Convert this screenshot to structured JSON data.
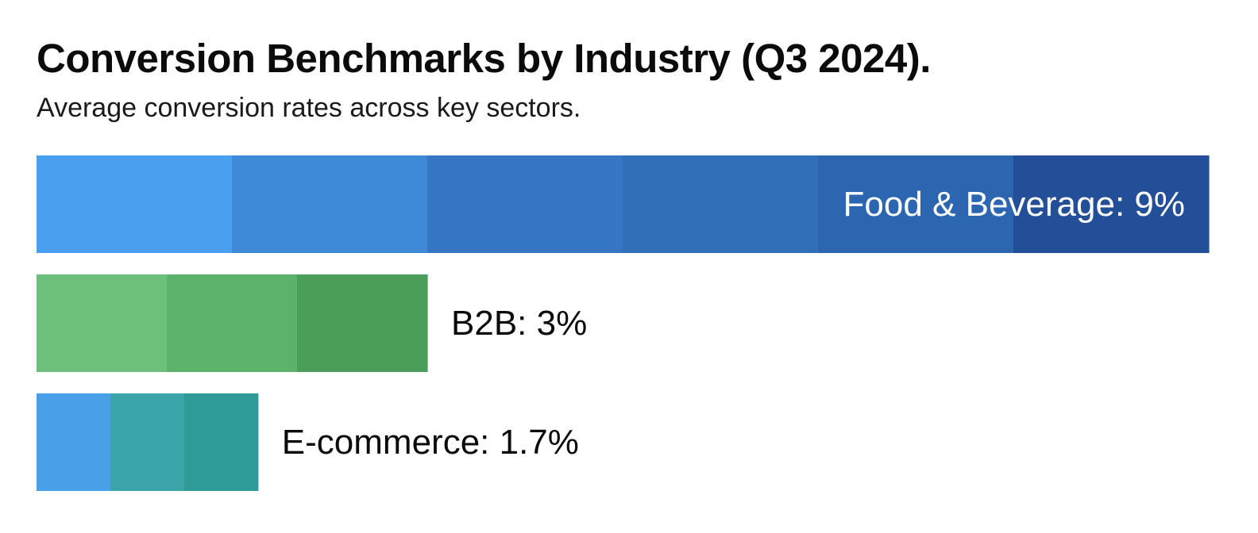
{
  "header": {
    "title": "Conversion Benchmarks by Industry (Q3 2024).",
    "subtitle": "Average conversion rates across key sectors."
  },
  "chart_data": {
    "type": "bar",
    "orientation": "horizontal",
    "title": "Conversion Benchmarks by Industry (Q3 2024).",
    "subtitle": "Average conversion rates across key sectors.",
    "xlabel": "",
    "ylabel": "",
    "unit": "%",
    "xlim": [
      0,
      9
    ],
    "grid": false,
    "legend": "none",
    "categories": [
      "Food & Beverage",
      "B2B",
      "E-commerce"
    ],
    "values": [
      9,
      3,
      1.7
    ],
    "labels": [
      "Food & Beverage: 9%",
      "B2B: 3%",
      "E-commerce: 1.7%"
    ],
    "colors": [
      [
        "#4aa0ee",
        "#3f8ad8",
        "#3677c4",
        "#3170b9",
        "#2c65b0",
        "#234f98"
      ],
      [
        "#6cc07c",
        "#5cb26b",
        "#4a9e59"
      ],
      [
        "#48a0e8",
        "#3aa4a8",
        "#2f9a98"
      ]
    ],
    "label_colors": [
      "#ffffff",
      "#0b0b0b",
      "#0b0b0b"
    ]
  }
}
